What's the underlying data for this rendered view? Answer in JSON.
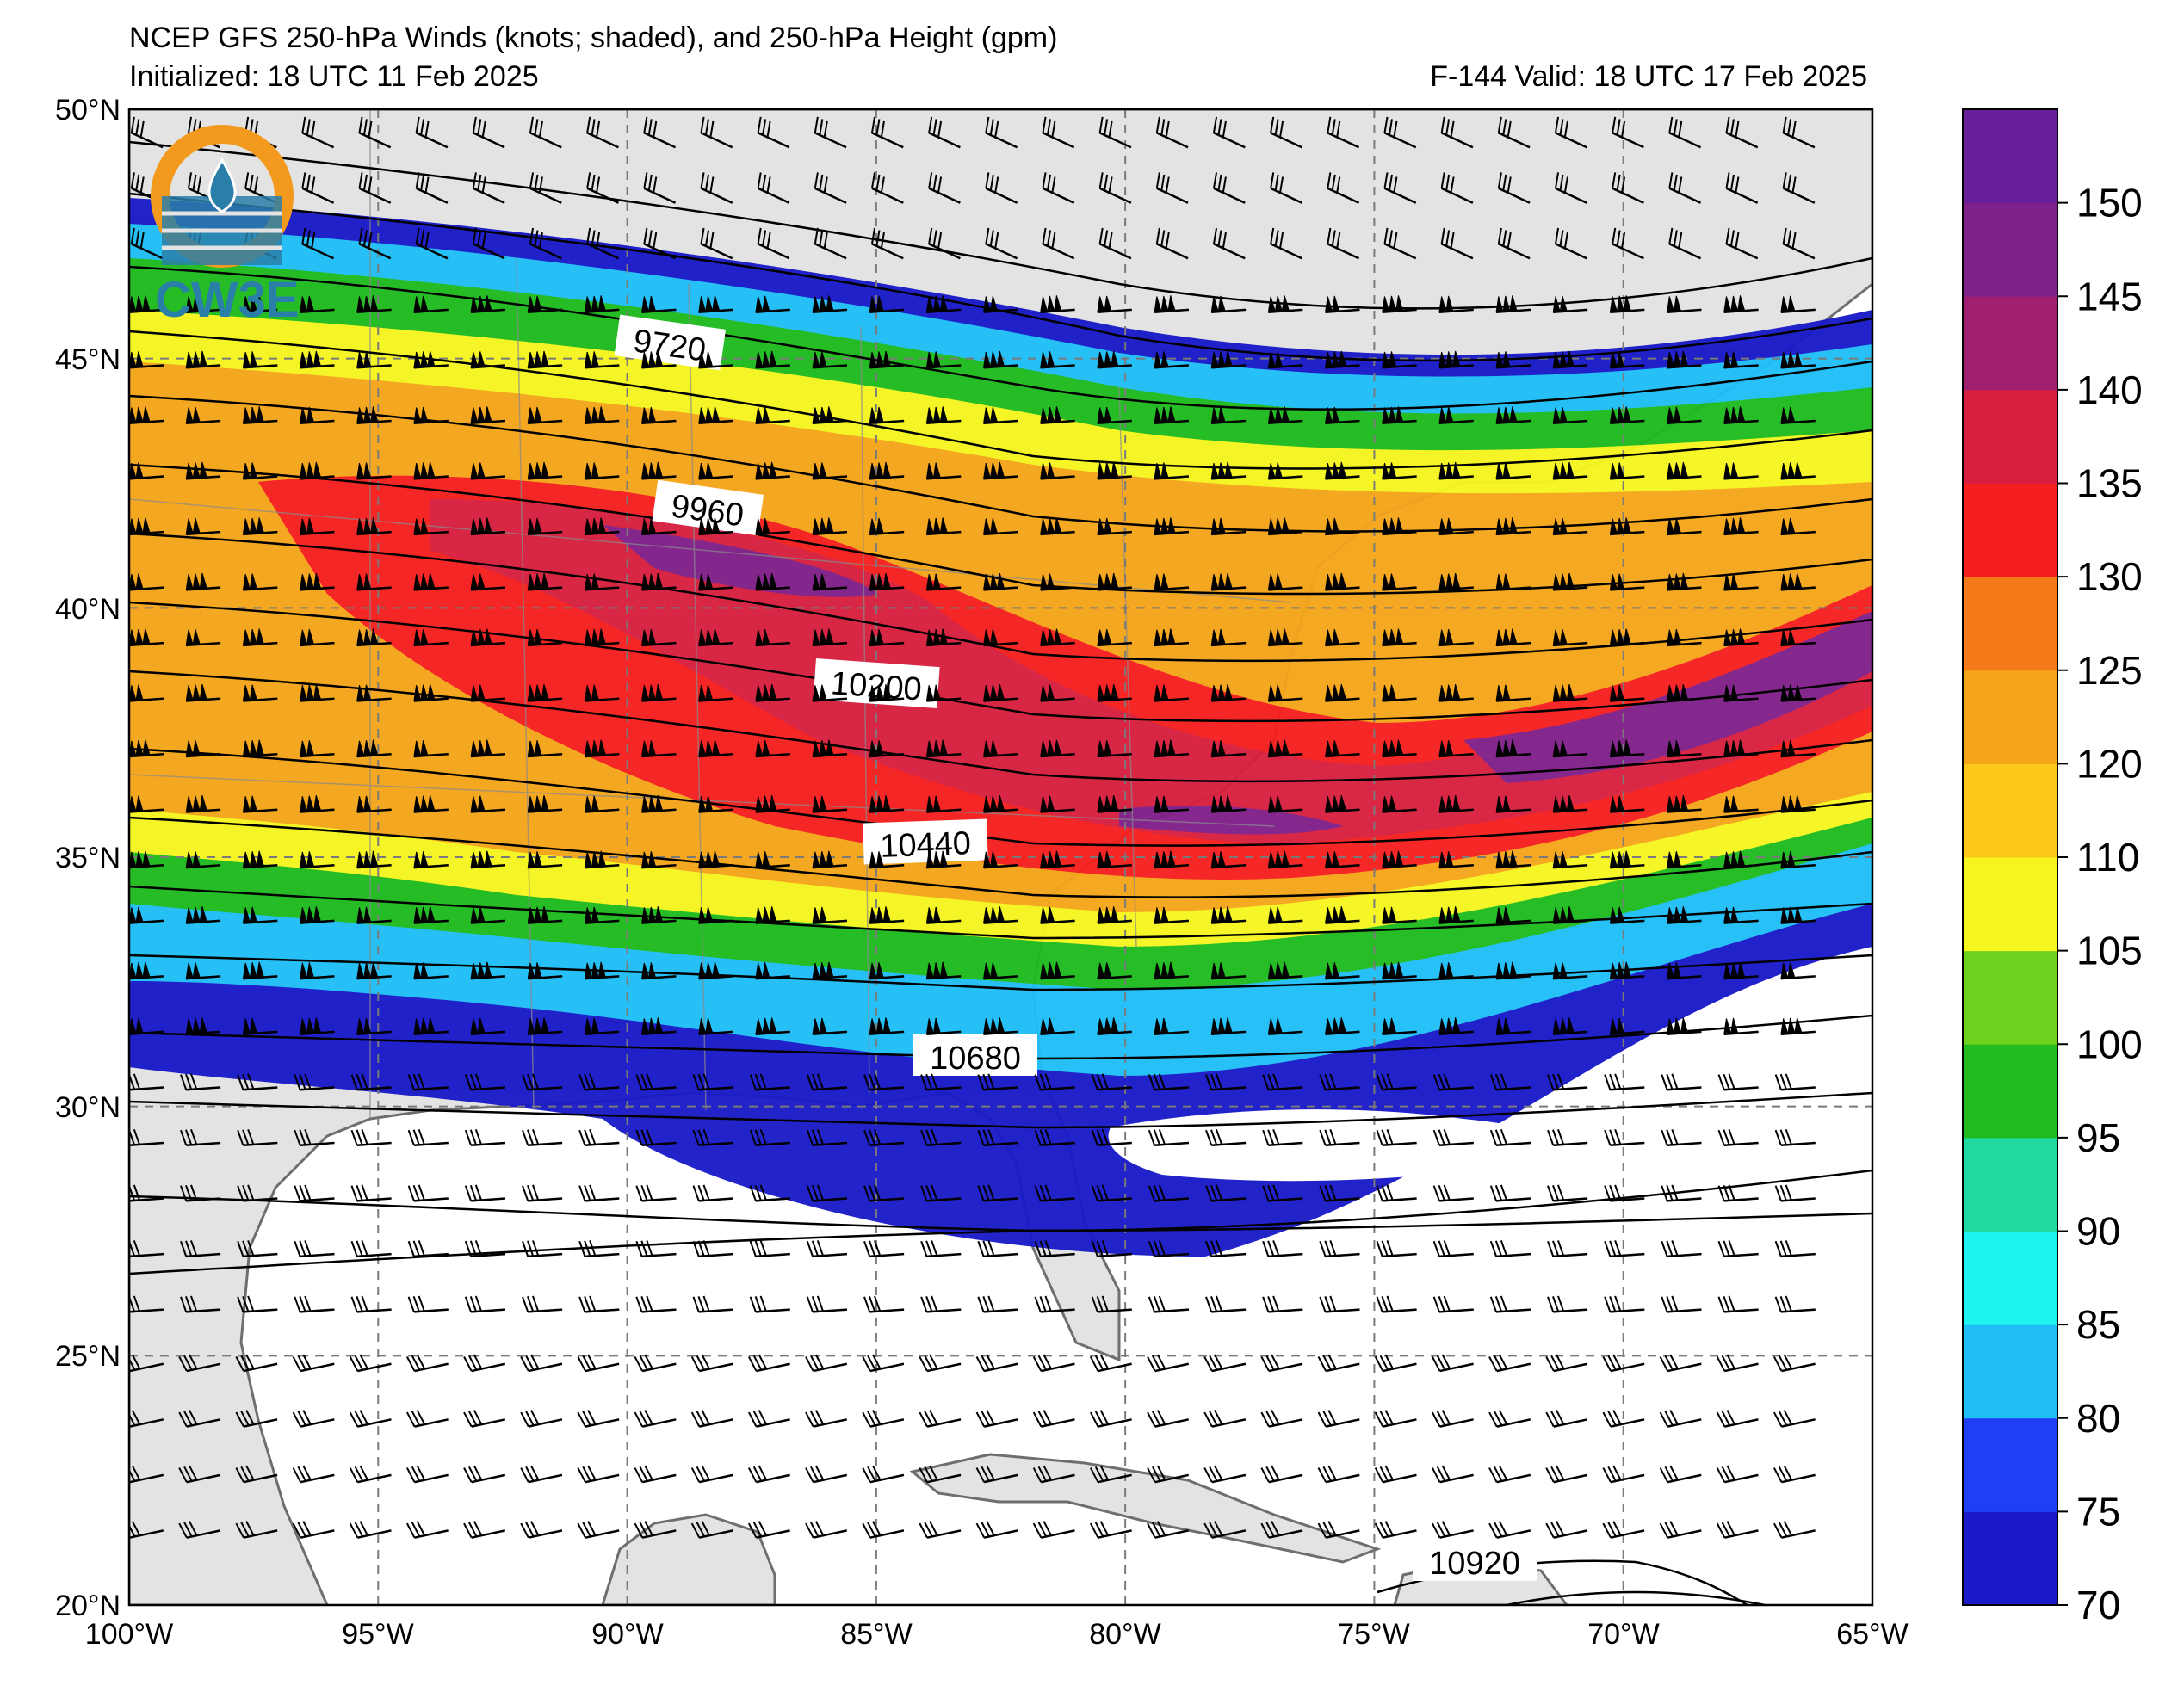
{
  "title_line1": "NCEP GFS 250-hPa Winds (knots; shaded), and 250-hPa Height (gpm)",
  "title_line2": "Initialized: 18 UTC 11 Feb 2025",
  "valid_text": "F-144  Valid: 18 UTC 17 Feb 2025",
  "logo_text": "CW3E",
  "map_extent": {
    "lon_min": -100,
    "lon_max": -65,
    "lat_min": 20,
    "lat_max": 50
  },
  "lat_labels": [
    "20°N",
    "25°N",
    "30°N",
    "35°N",
    "40°N",
    "45°N",
    "50°N"
  ],
  "lon_labels": [
    "100°W",
    "95°W",
    "90°W",
    "85°W",
    "80°W",
    "75°W",
    "70°W",
    "65°W"
  ],
  "height_contours": [
    "9720",
    "9960",
    "10200",
    "10440",
    "10680",
    "10920"
  ],
  "colorbar": {
    "ticks": [
      "70",
      "75",
      "80",
      "85",
      "90",
      "95",
      "100",
      "105",
      "110",
      "120",
      "125",
      "130",
      "135",
      "140",
      "145",
      "150"
    ],
    "colors": [
      "#1a1ac8",
      "#1f3ff5",
      "#1fbef7",
      "#1ff5f0",
      "#1fd9a0",
      "#1fbb1f",
      "#6fd11f",
      "#f5f51f",
      "#fbc81a",
      "#f5a51a",
      "#f57a1a",
      "#f51f1f",
      "#d81f3f",
      "#a01f70",
      "#80208a",
      "#6a1f9a"
    ]
  },
  "colors": {
    "land": "#e3e3e3",
    "coast": "#6e6e6e",
    "logo_orange": "#f39a1e",
    "logo_blue": "#2a7fa8"
  }
}
